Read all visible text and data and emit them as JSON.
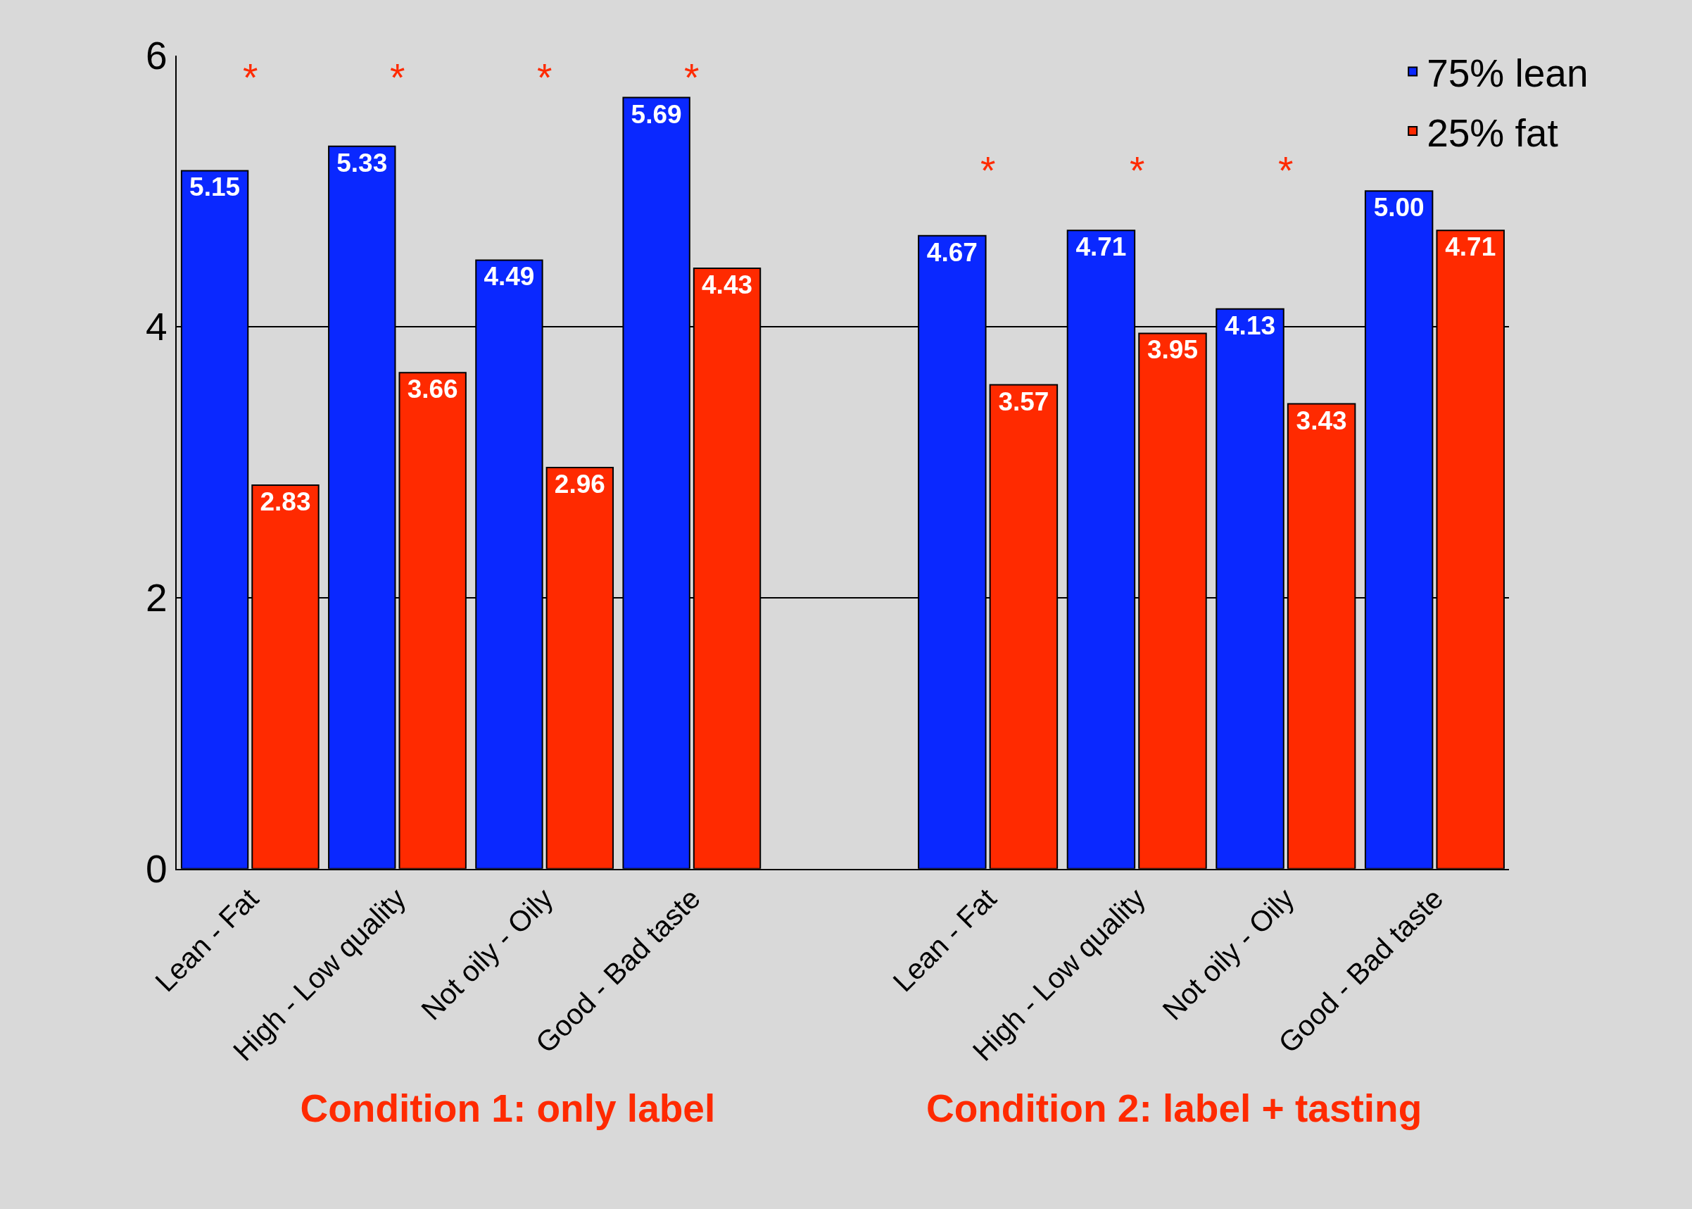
{
  "chart_data": [
    {
      "type": "bar",
      "categories": [
        "Lean - Fat",
        "High - Low quality",
        "Not oily - Oily",
        "Good - Bad taste"
      ],
      "xlabel": "Condition 1: only label",
      "ylim": [
        0,
        6
      ],
      "yticks": [
        0,
        2,
        4,
        6
      ],
      "grid": "y",
      "series": [
        {
          "name": "75% lean",
          "color": "#0a28ff",
          "values": [
            5.15,
            5.33,
            4.49,
            5.69
          ],
          "value_labels": [
            "5.15",
            "5.33",
            "4.49",
            "5.69"
          ]
        },
        {
          "name": "25% fat",
          "color": "#ff2a00",
          "values": [
            2.83,
            3.66,
            2.96,
            4.43
          ],
          "value_labels": [
            "2.83",
            "3.66",
            "2.96",
            "4.43"
          ]
        }
      ],
      "legend": "top right",
      "annotations": [
        "*",
        "*",
        "*",
        "*"
      ]
    },
    {
      "type": "bar",
      "categories": [
        "Lean - Fat",
        "High - Low quality",
        "Not oily - Oily",
        "Good - Bad taste"
      ],
      "xlabel": "Condition 2: label + tasting",
      "ylim": [
        0,
        6
      ],
      "yticks": [
        0,
        2,
        4,
        6
      ],
      "grid": "y",
      "tick_labels": "x",
      "series": [
        {
          "color": "#0a28ff",
          "values": [
            4.67,
            4.71,
            4.13,
            5.0
          ],
          "value_labels": [
            "4.67",
            "4.71",
            "4.13",
            "5.00"
          ]
        },
        {
          "color": "#ff2a00",
          "values": [
            3.57,
            3.95,
            3.43,
            4.71
          ],
          "value_labels": [
            "3.57",
            "3.95",
            "3.43",
            "4.71"
          ]
        }
      ],
      "annotations": [
        "*",
        "*",
        "*"
      ]
    }
  ]
}
